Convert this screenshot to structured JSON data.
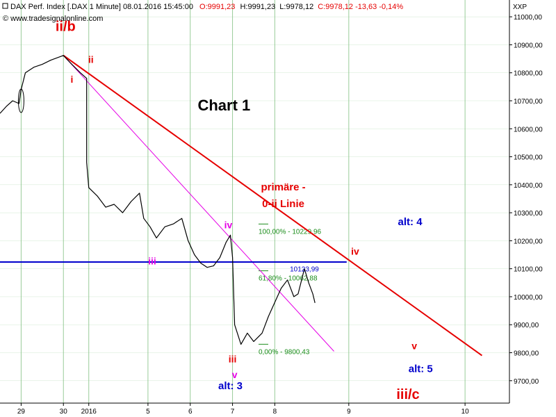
{
  "header": {
    "instrument": "DAX Perf. Index [.DAX 1 Minute] 08.01.2016 15:45:00",
    "ohlc_open": "O:9991,23",
    "ohlc_high": "H:9991,23",
    "ohlc_low": "L:9978,12",
    "ohlc_close": "C:9978,12 -13,63 -0,14%",
    "copyright": "© www.tradesignalonline.com",
    "axis_code": "XXP"
  },
  "colors": {
    "price": "#000000",
    "red": "#e60000",
    "magenta": "#e600e6",
    "blue": "#0000cc",
    "fib": "#1a8c1a",
    "grid": "#7fbf7f"
  },
  "chart_data": {
    "type": "line",
    "title": "Chart 1",
    "ylim": [
      9620,
      11060
    ],
    "grid": true,
    "y_ticks": [
      9700,
      9800,
      9900,
      10000,
      10100,
      10200,
      10300,
      10400,
      10500,
      10600,
      10700,
      10800,
      10900,
      11000
    ],
    "y_tick_labels": [
      "9700,00",
      "9800,00",
      "9900,00",
      "10000,00",
      "10100,00",
      "10200,00",
      "10300,00",
      "10400,00",
      "10500,00",
      "10600,00",
      "10700,00",
      "10800,00",
      "10900,00",
      "11000,00"
    ],
    "x_ticks": [
      {
        "t": 0.5,
        "label": "29"
      },
      {
        "t": 1.5,
        "label": "30"
      },
      {
        "t": 2.1,
        "label": "2016"
      },
      {
        "t": 3.5,
        "label": "5"
      },
      {
        "t": 4.5,
        "label": "6"
      },
      {
        "t": 5.5,
        "label": "7"
      },
      {
        "t": 6.5,
        "label": "8"
      },
      {
        "t": 8.25,
        "label": "9"
      },
      {
        "t": 11.0,
        "label": "10"
      }
    ],
    "series": [
      {
        "values": [
          [
            0.0,
            10655
          ],
          [
            0.15,
            10680
          ],
          [
            0.3,
            10700
          ],
          [
            0.45,
            10690
          ],
          [
            0.5,
            10740
          ],
          [
            0.6,
            10800
          ],
          [
            0.8,
            10820
          ],
          [
            1.0,
            10830
          ],
          [
            1.2,
            10845
          ],
          [
            1.5,
            10862
          ],
          [
            1.7,
            10830
          ],
          [
            1.9,
            10800
          ],
          [
            2.05,
            10780
          ],
          [
            2.05,
            10480
          ],
          [
            2.1,
            10390
          ],
          [
            2.3,
            10360
          ],
          [
            2.5,
            10320
          ],
          [
            2.7,
            10330
          ],
          [
            2.9,
            10300
          ],
          [
            3.1,
            10340
          ],
          [
            3.3,
            10370
          ],
          [
            3.4,
            10280
          ],
          [
            3.55,
            10250
          ],
          [
            3.7,
            10210
          ],
          [
            3.9,
            10250
          ],
          [
            4.1,
            10260
          ],
          [
            4.3,
            10280
          ],
          [
            4.45,
            10200
          ],
          [
            4.6,
            10150
          ],
          [
            4.75,
            10120
          ],
          [
            4.9,
            10105
          ],
          [
            5.05,
            10110
          ],
          [
            5.2,
            10140
          ],
          [
            5.35,
            10195
          ],
          [
            5.45,
            10220
          ],
          [
            5.5,
            10140
          ],
          [
            5.55,
            9900
          ],
          [
            5.7,
            9830
          ],
          [
            5.85,
            9870
          ],
          [
            6.0,
            9840
          ],
          [
            6.2,
            9870
          ],
          [
            6.35,
            9930
          ],
          [
            6.5,
            9980
          ],
          [
            6.65,
            10030
          ],
          [
            6.8,
            10060
          ],
          [
            6.95,
            10000
          ],
          [
            7.05,
            10010
          ],
          [
            7.2,
            10100
          ],
          [
            7.3,
            10050
          ],
          [
            7.4,
            10010
          ],
          [
            7.45,
            9978
          ]
        ]
      }
    ],
    "lines": [
      {
        "name": "primäre 0-ii Linie",
        "color": "red",
        "from": [
          1.5,
          10862
        ],
        "to": [
          11.4,
          9790
        ]
      },
      {
        "name": "magenta trend",
        "color": "magenta",
        "from": [
          1.5,
          10862
        ],
        "to": [
          7.9,
          9805
        ]
      },
      {
        "name": "level",
        "color": "blue",
        "from": [
          0.0,
          10123.99
        ],
        "to": [
          8.2,
          10123.99
        ]
      }
    ],
    "fib_levels": [
      {
        "label": "100,00% - 10229,96",
        "value": 10229.96
      },
      {
        "label": "61,80% - 10062,88",
        "value": 10062.88
      },
      {
        "label": "0,00% - 9800,43",
        "value": 9800.43
      }
    ],
    "annotations": [
      {
        "text": "ii/b",
        "color": "red",
        "t": 1.55,
        "v": 10950,
        "size": 20,
        "bold": true
      },
      {
        "text": "ii",
        "color": "red",
        "t": 2.15,
        "v": 10835,
        "size": 14,
        "bold": true
      },
      {
        "text": "i",
        "color": "red",
        "t": 1.7,
        "v": 10765,
        "size": 14,
        "bold": true
      },
      {
        "text": "Chart 1",
        "color": "black",
        "t": 5.3,
        "v": 10665,
        "size": 22,
        "bold": true
      },
      {
        "text": "primäre -",
        "color": "red",
        "t": 6.7,
        "v": 10380,
        "size": 15,
        "bold": true
      },
      {
        "text": "0-ii Linie",
        "color": "red",
        "t": 6.7,
        "v": 10320,
        "size": 15,
        "bold": true
      },
      {
        "text": "iv",
        "color": "magenta",
        "t": 5.4,
        "v": 10245,
        "size": 14,
        "bold": true
      },
      {
        "text": "iii",
        "color": "magenta",
        "t": 3.6,
        "v": 10115,
        "size": 14,
        "bold": true
      },
      {
        "text": "10123,99",
        "color": "blue",
        "t": 7.2,
        "v": 10090,
        "size": 10,
        "bold": false
      },
      {
        "text": "iv",
        "color": "red",
        "t": 8.4,
        "v": 10150,
        "size": 14,
        "bold": true
      },
      {
        "text": "alt: 4",
        "color": "blue",
        "t": 9.7,
        "v": 10255,
        "size": 15,
        "bold": true
      },
      {
        "text": "iii",
        "color": "red",
        "t": 5.5,
        "v": 9765,
        "size": 14,
        "bold": true
      },
      {
        "text": "v",
        "color": "magenta",
        "t": 5.55,
        "v": 9710,
        "size": 14,
        "bold": true
      },
      {
        "text": "alt: 3",
        "color": "blue",
        "t": 5.45,
        "v": 9670,
        "size": 15,
        "bold": true
      },
      {
        "text": "v",
        "color": "red",
        "t": 9.8,
        "v": 9812,
        "size": 14,
        "bold": true
      },
      {
        "text": "alt: 5",
        "color": "blue",
        "t": 9.95,
        "v": 9730,
        "size": 15,
        "bold": true
      },
      {
        "text": "iii/c",
        "color": "red",
        "t": 9.65,
        "v": 9635,
        "size": 20,
        "bold": true
      }
    ]
  }
}
